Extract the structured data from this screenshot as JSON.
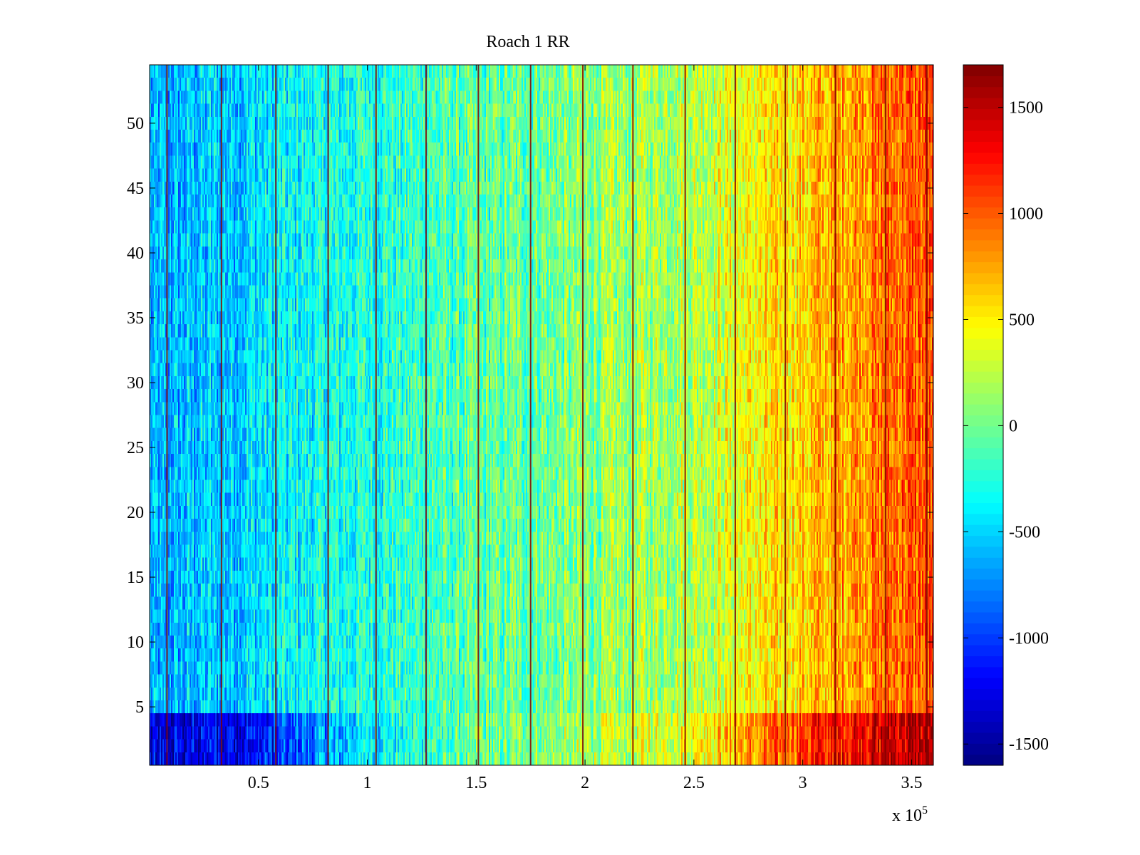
{
  "chart_data": {
    "type": "heatmap",
    "title": "Roach 1 RR",
    "xlabel": "",
    "ylabel": "",
    "xlim": [
      0,
      360000
    ],
    "ylim": [
      0.5,
      54.5
    ],
    "x_ticks": [
      50000,
      100000,
      150000,
      200000,
      250000,
      300000,
      350000
    ],
    "x_tick_labels": [
      "0.5",
      "1",
      "1.5",
      "2",
      "2.5",
      "3",
      "3.5"
    ],
    "x_exponent_label": "x 10",
    "x_exponent_power": "5",
    "y_ticks": [
      5,
      10,
      15,
      20,
      25,
      30,
      35,
      40,
      45,
      50
    ],
    "y_tick_labels": [
      "5",
      "10",
      "15",
      "20",
      "25",
      "30",
      "35",
      "40",
      "45",
      "50"
    ],
    "rows": 54,
    "colormap": "jet",
    "clim": [
      -1600,
      1700
    ],
    "colorbar": {
      "ticks": [
        1500,
        1000,
        500,
        0,
        -500,
        -1000,
        -1500
      ],
      "tick_labels": [
        "1500",
        "1000",
        "500",
        "0",
        "-500",
        "-1000",
        "-1500"
      ]
    },
    "trend_x_breakpoints": [
      0,
      50000,
      100000,
      150000,
      200000,
      250000,
      300000,
      340000,
      360000
    ],
    "trend_values_mid_rows": [
      -650,
      -450,
      -250,
      -100,
      50,
      250,
      600,
      950,
      1050
    ],
    "trend_values_bottom_rows_1_4": [
      -1350,
      -1150,
      -400,
      -50,
      150,
      450,
      1100,
      1450,
      1550
    ],
    "spike_columns_x": [
      8000,
      33000,
      58000,
      82000,
      104000,
      127000,
      151000,
      175000,
      199000,
      222000,
      246000,
      269000,
      292000,
      315000,
      338000,
      357000
    ],
    "spike_value": 1700
  }
}
